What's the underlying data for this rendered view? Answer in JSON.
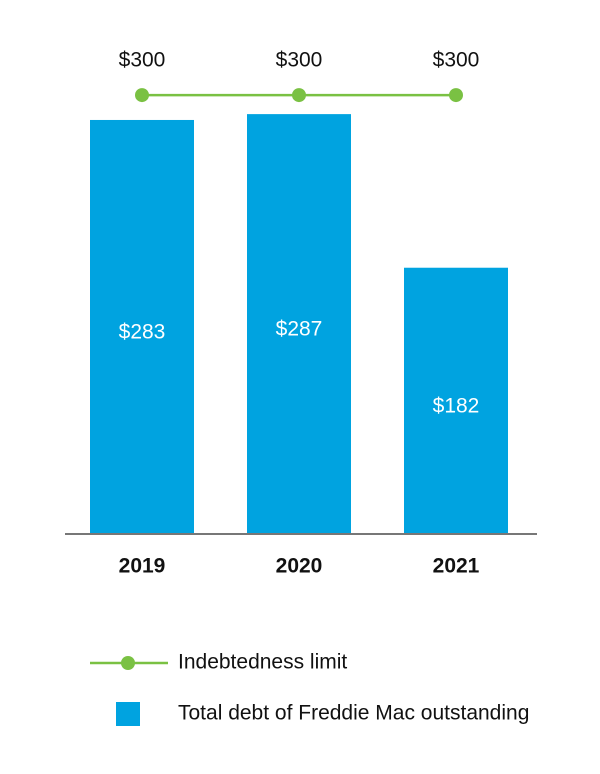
{
  "chart_data": {
    "type": "bar",
    "categories": [
      "2019",
      "2020",
      "2021"
    ],
    "ylim": [
      0,
      365
    ],
    "series": [
      {
        "name": "Indebtedness limit",
        "type": "line",
        "color": "#7ac143",
        "values": [
          300,
          300,
          300
        ],
        "value_labels": [
          "$300",
          "$300",
          "$300"
        ]
      },
      {
        "name": "Total debt of Freddie Mac outstanding",
        "type": "bar",
        "color": "#00a3e0",
        "values": [
          283,
          287,
          182
        ],
        "value_labels": [
          "$283",
          "$287",
          "$182"
        ]
      }
    ]
  }
}
